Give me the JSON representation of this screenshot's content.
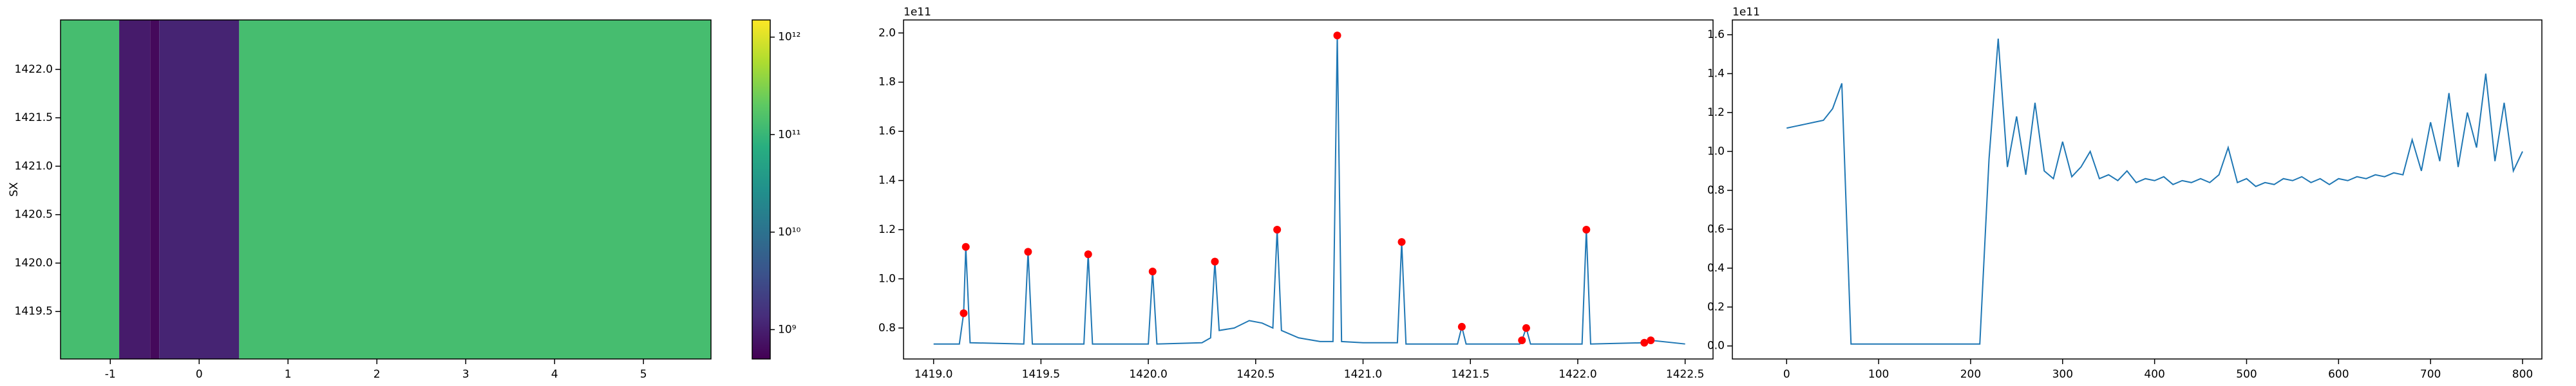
{
  "chart_data": [
    {
      "type": "heatmap",
      "ylabel": "SX",
      "x_edges": [
        -1.56,
        -0.9,
        -0.55,
        -0.45,
        0.45,
        5.76
      ],
      "values": [
        130000000000,
        900000000,
        600000000,
        1100000000,
        130000000000
      ],
      "xlim": [
        -1.56,
        5.76
      ],
      "ylim": [
        1419.01,
        1422.51
      ],
      "xticks": [
        -1,
        0,
        1,
        2,
        3,
        4,
        5
      ],
      "yticks": [
        1419.5,
        {
          "value": 1420,
          "label": "1420.0"
        },
        1420.5,
        {
          "value": 1421,
          "label": "1421.0"
        },
        1421.5,
        {
          "value": 1422,
          "label": "1422.0"
        }
      ],
      "colorbar": {
        "scale": "log",
        "lim": [
          500000000,
          1500000000000
        ],
        "ticks": [
          {
            "value": 1000000000,
            "label": "10⁹"
          },
          {
            "value": 10000000000,
            "label": "10¹⁰"
          },
          {
            "value": 100000000000,
            "label": "10¹¹"
          },
          {
            "value": 1000000000000,
            "label": "10¹²"
          }
        ]
      }
    },
    {
      "type": "line",
      "y_offset_label": "1e11",
      "xlim": [
        1418.86,
        1422.63
      ],
      "ylim": [
        0.674,
        2.053
      ],
      "xticks": [
        {
          "value": 1419,
          "label": "1419.0"
        },
        1419.5,
        {
          "value": 1420,
          "label": "1420.0"
        },
        1420.5,
        {
          "value": 1421,
          "label": "1421.0"
        },
        1421.5,
        {
          "value": 1422,
          "label": "1422.0"
        },
        1422.5
      ],
      "yticks": [
        0.8,
        {
          "value": 1,
          "label": "1.0"
        },
        1.2,
        1.4,
        1.6,
        1.8,
        {
          "value": 2,
          "label": "2.0"
        }
      ],
      "series": [
        {
          "color": "#1f77b4",
          "x": [
            1419.0,
            1419.12,
            1419.14,
            1419.15,
            1419.17,
            1419.42,
            1419.44,
            1419.46,
            1419.7,
            1419.72,
            1419.74,
            1420.0,
            1420.02,
            1420.04,
            1420.25,
            1420.29,
            1420.31,
            1420.33,
            1420.4,
            1420.47,
            1420.53,
            1420.58,
            1420.6,
            1420.62,
            1420.7,
            1420.8,
            1420.86,
            1420.88,
            1420.9,
            1421.0,
            1421.16,
            1421.18,
            1421.2,
            1421.44,
            1421.46,
            1421.48,
            1421.73,
            1421.74,
            1421.76,
            1421.78,
            1422.02,
            1422.04,
            1422.06,
            1422.31,
            1422.34,
            1422.5
          ],
          "values": [
            0.735,
            0.735,
            0.86,
            1.13,
            0.74,
            0.735,
            1.11,
            0.735,
            0.735,
            1.1,
            0.735,
            0.735,
            1.03,
            0.735,
            0.74,
            0.76,
            1.07,
            0.79,
            0.8,
            0.83,
            0.82,
            0.8,
            1.2,
            0.79,
            0.76,
            0.745,
            0.745,
            1.99,
            0.745,
            0.74,
            0.74,
            1.15,
            0.735,
            0.735,
            0.805,
            0.735,
            0.735,
            0.75,
            0.8,
            0.735,
            0.735,
            1.2,
            0.735,
            0.74,
            0.75,
            0.735
          ]
        },
        {
          "color": "red",
          "marker": "o",
          "linestyle": "none",
          "x": [
            1419.14,
            1419.15,
            1419.44,
            1419.72,
            1420.02,
            1420.31,
            1420.6,
            1420.88,
            1421.18,
            1421.46,
            1421.74,
            1421.76,
            1422.04,
            1422.31,
            1422.34
          ],
          "values": [
            0.86,
            1.13,
            1.11,
            1.1,
            1.03,
            1.07,
            1.2,
            1.99,
            1.15,
            0.805,
            0.75,
            0.8,
            1.2,
            0.74,
            0.75
          ]
        }
      ]
    },
    {
      "type": "line",
      "y_offset_label": "1e11",
      "xlim": [
        -59,
        821
      ],
      "ylim": [
        -0.067,
        1.676
      ],
      "xticks": [
        0,
        100,
        200,
        300,
        400,
        500,
        600,
        700,
        800
      ],
      "yticks": [
        {
          "value": 0,
          "label": "0.0"
        },
        0.2,
        0.4,
        0.6,
        0.8,
        {
          "value": 1,
          "label": "1.0"
        },
        1.2,
        1.4,
        1.6
      ],
      "series": [
        {
          "color": "#1f77b4",
          "x": [
            0,
            10,
            20,
            30,
            40,
            50,
            60,
            70,
            80,
            90,
            100,
            110,
            120,
            130,
            140,
            150,
            160,
            170,
            180,
            190,
            200,
            210,
            220,
            230,
            240,
            250,
            260,
            270,
            280,
            290,
            300,
            310,
            320,
            330,
            340,
            350,
            360,
            370,
            380,
            390,
            400,
            410,
            420,
            430,
            440,
            450,
            460,
            470,
            480,
            490,
            500,
            510,
            520,
            530,
            540,
            550,
            560,
            570,
            580,
            590,
            600,
            610,
            620,
            630,
            640,
            650,
            660,
            670,
            680,
            690,
            700,
            710,
            720,
            730,
            740,
            750,
            760,
            770,
            780,
            790,
            800
          ],
          "values": [
            1.12,
            1.13,
            1.14,
            1.15,
            1.16,
            1.22,
            1.35,
            0.01,
            0.01,
            0.01,
            0.01,
            0.01,
            0.01,
            0.01,
            0.01,
            0.01,
            0.01,
            0.01,
            0.01,
            0.01,
            0.01,
            0.01,
            0.96,
            1.58,
            0.92,
            1.18,
            0.88,
            1.25,
            0.9,
            0.86,
            1.05,
            0.87,
            0.92,
            1.0,
            0.86,
            0.88,
            0.85,
            0.9,
            0.84,
            0.86,
            0.85,
            0.87,
            0.83,
            0.85,
            0.84,
            0.86,
            0.84,
            0.88,
            1.02,
            0.84,
            0.86,
            0.82,
            0.84,
            0.83,
            0.86,
            0.85,
            0.87,
            0.84,
            0.86,
            0.83,
            0.86,
            0.85,
            0.87,
            0.86,
            0.88,
            0.87,
            0.89,
            0.88,
            1.06,
            0.9,
            1.15,
            0.95,
            1.3,
            0.92,
            1.2,
            1.02,
            1.4,
            0.95,
            1.25,
            0.9,
            1.0
          ]
        }
      ]
    }
  ]
}
